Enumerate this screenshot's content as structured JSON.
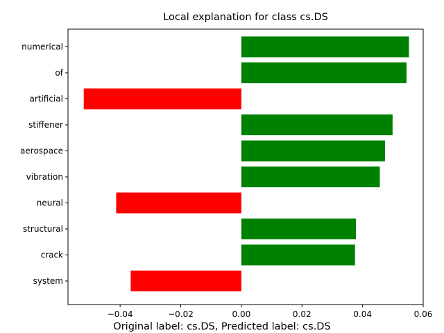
{
  "chart_data": {
    "type": "bar",
    "orientation": "horizontal",
    "title": "Local explanation for class cs.DS",
    "caption": "Original label: cs.DS, Predicted label: cs.DS",
    "categories": [
      "numerical",
      "of",
      "artificial",
      "stiffener",
      "aerospace",
      "vibration",
      "neural",
      "structural",
      "crack",
      "system"
    ],
    "values": [
      0.0553,
      0.0545,
      -0.052,
      0.0499,
      0.0474,
      0.0457,
      -0.0413,
      0.0378,
      0.0375,
      -0.0365
    ],
    "xlim": [
      -0.0572,
      0.06
    ],
    "xticks": [
      -0.04,
      -0.02,
      0.0,
      0.02,
      0.04,
      0.06
    ],
    "xtick_labels": [
      "−0.04",
      "−0.02",
      "0.00",
      "0.02",
      "0.04",
      "0.06"
    ],
    "xlabel": "",
    "ylabel": "",
    "grid": false,
    "colors": {
      "positive": "#008000",
      "negative": "#ff0000"
    }
  }
}
